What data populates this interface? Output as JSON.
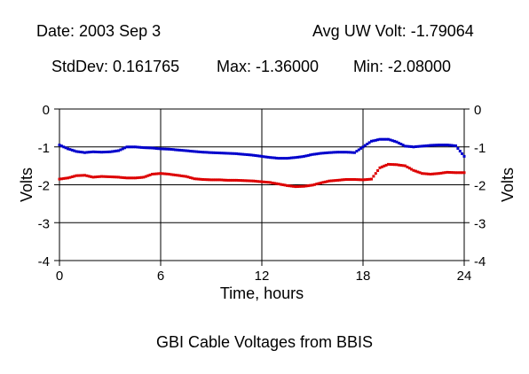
{
  "header": {
    "date": "Date: 2003 Sep 3",
    "avg": "Avg UW Volt: -1.79064",
    "stddev": "StdDev: 0.161765",
    "max": "Max: -1.36000",
    "min": "Min: -2.08000"
  },
  "colors": {
    "series_blue": "#0000cc",
    "series_red": "#dd0000",
    "grid": "#000000"
  },
  "chart_data": {
    "type": "scatter",
    "title": "GBI Cable Voltages from BBIS",
    "xlabel": "Time, hours",
    "ylabel": "Volts",
    "y2label": "Volts",
    "xlim": [
      0,
      24
    ],
    "ylim": [
      -4,
      0
    ],
    "x_ticks": [
      0,
      6,
      12,
      18,
      24
    ],
    "y_ticks": [
      0,
      -1,
      -2,
      -3,
      -4
    ],
    "grid": true,
    "series": [
      {
        "color": "#0000cc",
        "x": [
          0,
          0.5,
          1,
          1.5,
          2,
          2.5,
          3,
          3.5,
          4,
          4.5,
          5,
          5.5,
          6,
          6.5,
          7,
          7.5,
          8,
          8.5,
          9,
          9.5,
          10,
          10.5,
          11,
          11.5,
          12,
          12.5,
          13,
          13.5,
          14,
          14.5,
          15,
          15.5,
          16,
          16.5,
          17,
          17.5,
          18,
          18.5,
          19,
          19.5,
          20,
          20.5,
          21,
          21.5,
          22,
          22.5,
          23,
          23.5,
          24
        ],
        "y": [
          -0.95,
          -1.05,
          -1.12,
          -1.15,
          -1.13,
          -1.14,
          -1.13,
          -1.1,
          -1.0,
          -1.0,
          -1.02,
          -1.03,
          -1.05,
          -1.06,
          -1.08,
          -1.1,
          -1.12,
          -1.14,
          -1.15,
          -1.16,
          -1.17,
          -1.18,
          -1.2,
          -1.22,
          -1.25,
          -1.28,
          -1.3,
          -1.3,
          -1.28,
          -1.25,
          -1.2,
          -1.17,
          -1.15,
          -1.14,
          -1.14,
          -1.15,
          -1.0,
          -0.85,
          -0.8,
          -0.8,
          -0.87,
          -0.98,
          -1.0,
          -0.98,
          -0.96,
          -0.95,
          -0.95,
          -0.97,
          -1.25
        ]
      },
      {
        "color": "#dd0000",
        "x": [
          0,
          0.5,
          1,
          1.5,
          2,
          2.5,
          3,
          3.5,
          4,
          4.5,
          5,
          5.5,
          6,
          6.5,
          7,
          7.5,
          8,
          8.5,
          9,
          9.5,
          10,
          10.5,
          11,
          11.5,
          12,
          12.5,
          13,
          13.5,
          14,
          14.5,
          15,
          15.5,
          16,
          16.5,
          17,
          17.5,
          18,
          18.5,
          19,
          19.5,
          20,
          20.5,
          21,
          21.5,
          22,
          22.5,
          23,
          23.5,
          24
        ],
        "y": [
          -1.85,
          -1.82,
          -1.76,
          -1.75,
          -1.8,
          -1.78,
          -1.79,
          -1.8,
          -1.82,
          -1.82,
          -1.8,
          -1.72,
          -1.7,
          -1.72,
          -1.75,
          -1.78,
          -1.84,
          -1.86,
          -1.87,
          -1.87,
          -1.88,
          -1.88,
          -1.89,
          -1.9,
          -1.92,
          -1.94,
          -1.98,
          -2.02,
          -2.05,
          -2.04,
          -2.01,
          -1.95,
          -1.9,
          -1.88,
          -1.86,
          -1.86,
          -1.87,
          -1.85,
          -1.55,
          -1.46,
          -1.47,
          -1.5,
          -1.62,
          -1.7,
          -1.72,
          -1.7,
          -1.67,
          -1.68,
          -1.68
        ]
      }
    ]
  }
}
